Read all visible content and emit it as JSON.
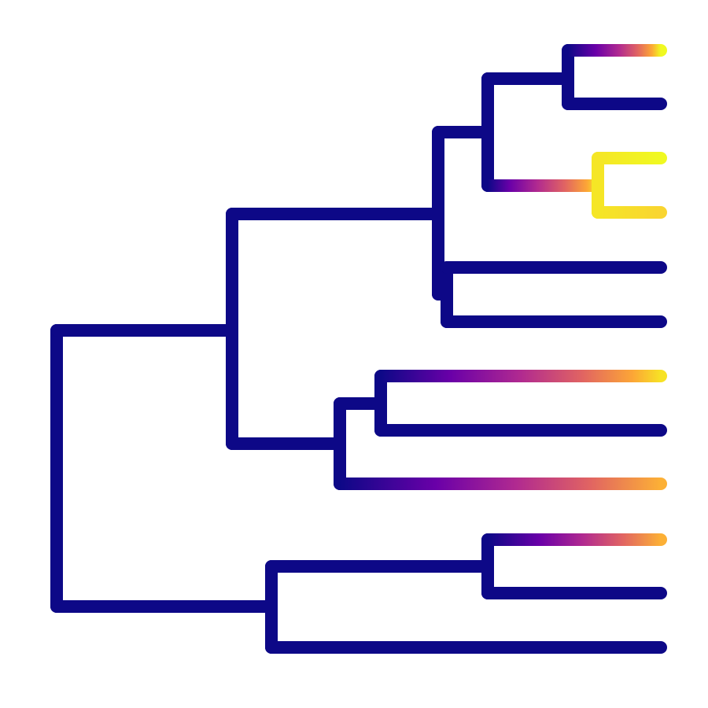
{
  "diagram": {
    "type": "phylogenetic-tree",
    "colormap": [
      "#0d0887",
      "#6a00a8",
      "#b12a90",
      "#e16462",
      "#fca636",
      "#f0f921"
    ],
    "base_color": "#0d0887",
    "tips": [
      {
        "id": "tip-1",
        "trait": 1.0
      },
      {
        "id": "tip-2",
        "trait": 0.0
      },
      {
        "id": "tip-3",
        "trait": 1.0
      },
      {
        "id": "tip-4",
        "trait": 0.95
      },
      {
        "id": "tip-5",
        "trait": 0.0
      },
      {
        "id": "tip-6",
        "trait": 0.0
      },
      {
        "id": "tip-7",
        "trait": 0.95
      },
      {
        "id": "tip-8",
        "trait": 0.0
      },
      {
        "id": "tip-9",
        "trait": 0.85
      },
      {
        "id": "tip-10",
        "trait": 0.85
      },
      {
        "id": "tip-11",
        "trait": 0.0
      },
      {
        "id": "tip-12",
        "trait": 0.0
      }
    ]
  }
}
